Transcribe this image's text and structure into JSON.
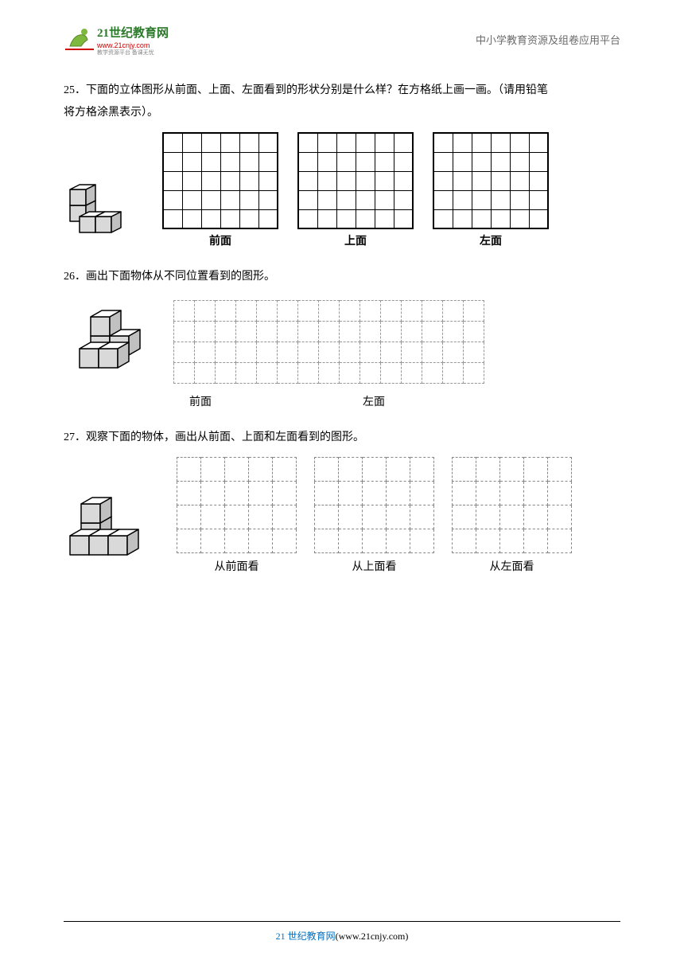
{
  "header": {
    "logo_main": "21世纪教育网",
    "logo_sub": "www.21cnjy.com",
    "right_text": "中小学教育资源及组卷应用平台"
  },
  "q25": {
    "number": "25．",
    "text_line1": "下面的立体图形从前面、上面、左面看到的形状分别是什么样？在方格纸上画一画。（请用铅笔",
    "text_line2": "将方格涂黑表示）。",
    "grids": [
      {
        "label": "前面",
        "cols": 6,
        "rows": 5,
        "cell": 24,
        "type": "solid"
      },
      {
        "label": "上面",
        "cols": 6,
        "rows": 5,
        "cell": 24,
        "type": "solid"
      },
      {
        "label": "左面",
        "cols": 6,
        "rows": 5,
        "cell": 24,
        "type": "solid"
      }
    ]
  },
  "q26": {
    "number": "26．",
    "text": "画出下面物体从不同位置看到的图形。",
    "grid": {
      "cols": 15,
      "rows": 4,
      "cell": 26,
      "type": "dashed"
    },
    "labels": [
      "前面",
      "左面"
    ]
  },
  "q27": {
    "number": "27．",
    "text": "观察下面的物体，画出从前面、上面和左面看到的图形。",
    "grids": [
      {
        "label": "从前面看",
        "cols": 5,
        "rows": 4,
        "cell": 30,
        "type": "dashed"
      },
      {
        "label": "从上面看",
        "cols": 5,
        "rows": 4,
        "cell": 30,
        "type": "dashed"
      },
      {
        "label": "从左面看",
        "cols": 5,
        "rows": 4,
        "cell": 30,
        "type": "dashed"
      }
    ]
  },
  "footer": {
    "blue": "21 世纪教育网",
    "black": "(www.21cnjy.com)"
  },
  "cube_colors": {
    "top": "#ffffff",
    "left": "#d9d9d9",
    "right": "#c0c0c0",
    "stroke": "#000000"
  }
}
